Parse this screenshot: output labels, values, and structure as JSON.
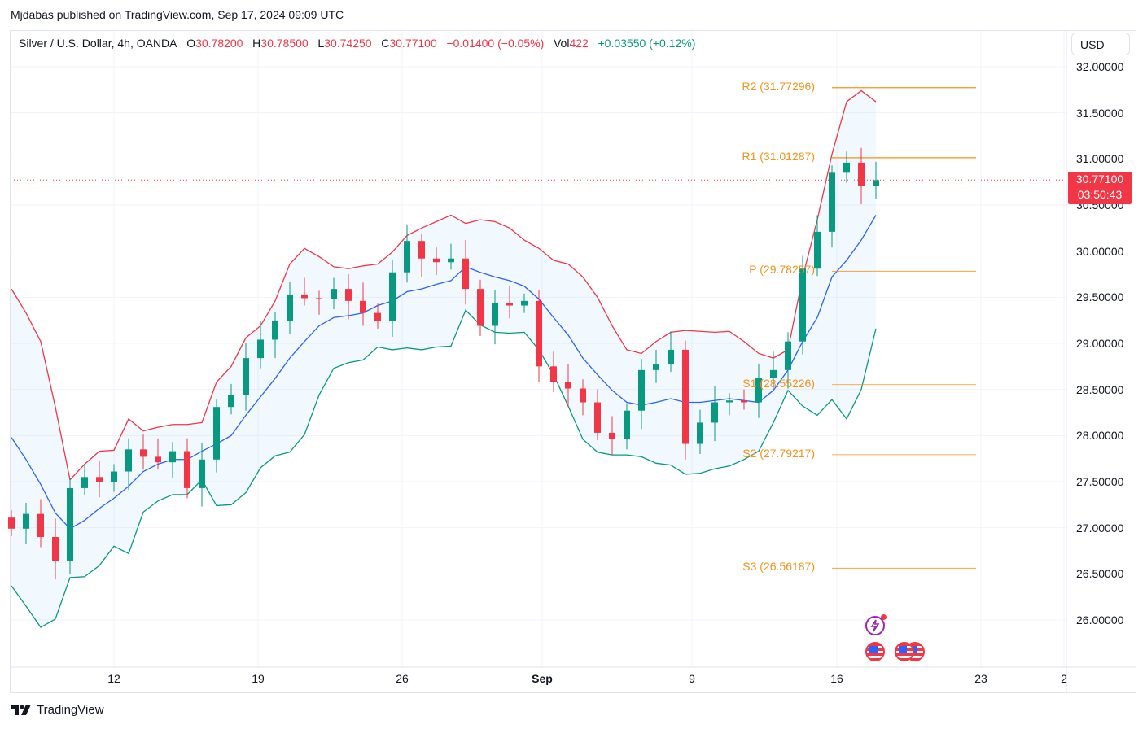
{
  "header": {
    "published": "Mjdabas published on TradingView.com, Sep 17, 2024 09:09 UTC"
  },
  "legend": {
    "symbol": "Silver / U.S. Dollar, 4h, OANDA",
    "open_label": "O",
    "open": "30.78200",
    "high_label": "H",
    "high": "30.78500",
    "low_label": "L",
    "low": "30.74250",
    "close_label": "C",
    "close": "30.77100",
    "change": "−0.01400 (−0.05%)",
    "vol_label": "Vol",
    "vol": "422",
    "indicator_change": "+0.03550 (+0.12%)"
  },
  "price_axis": {
    "currency": "USD",
    "last_price": "30.77100",
    "countdown": "03:50:43"
  },
  "footer": {
    "brand": "TradingView"
  },
  "colors": {
    "up": "#089981",
    "down": "#f23645",
    "bb_upper": "#f23645",
    "bb_basis": "#2962ff",
    "bb_lower": "#089981",
    "pivot": "#f7931a"
  },
  "chart_data": {
    "type": "candlestick",
    "title": "Silver / U.S. Dollar, 4h, OANDA",
    "ylim": [
      25.55,
      32.4
    ],
    "yticks": [
      "32.00000",
      "31.50000",
      "31.00000",
      "30.50000",
      "30.00000",
      "29.50000",
      "29.00000",
      "28.50000",
      "28.00000",
      "27.50000",
      "27.00000",
      "26.50000",
      "26.00000"
    ],
    "xticks": [
      "12",
      "19",
      "26",
      "Sep",
      "9",
      "16",
      "23",
      "2"
    ],
    "last_price": 30.771,
    "closes": [
      26.99,
      27.15,
      26.9,
      26.64,
      27.43,
      27.55,
      27.5,
      27.61,
      27.85,
      27.77,
      27.71,
      27.83,
      27.43,
      27.74,
      28.31,
      28.44,
      28.84,
      29.04,
      29.24,
      29.53,
      29.49,
      29.48,
      29.59,
      29.46,
      29.33,
      29.24,
      29.77,
      30.11,
      29.92,
      29.88,
      29.92,
      29.59,
      29.19,
      29.44,
      29.41,
      29.46,
      28.75,
      28.58,
      28.51,
      28.36,
      28.03,
      27.96,
      28.27,
      28.71,
      28.77,
      28.93,
      27.91,
      28.14,
      28.36,
      28.38,
      28.36,
      28.62,
      28.71,
      29.02,
      29.81,
      30.21,
      30.85,
      30.96,
      30.71,
      30.77
    ],
    "bb_upper": [
      29.59,
      29.33,
      29.02,
      28.31,
      27.52,
      27.69,
      27.83,
      27.84,
      28.18,
      28.05,
      28.09,
      28.12,
      28.12,
      28.14,
      28.58,
      28.75,
      29.06,
      29.19,
      29.46,
      29.86,
      30.03,
      29.94,
      29.83,
      29.81,
      29.84,
      29.86,
      29.99,
      30.17,
      30.25,
      30.32,
      30.39,
      30.3,
      30.34,
      30.32,
      30.25,
      30.12,
      30.03,
      29.9,
      29.86,
      29.72,
      29.5,
      29.19,
      28.93,
      28.89,
      29.02,
      29.12,
      29.14,
      29.13,
      29.12,
      29.13,
      29.02,
      28.89,
      28.84,
      28.93,
      29.72,
      30.34,
      31.05,
      31.62,
      31.74,
      31.62
    ],
    "bb_basis": [
      27.98,
      27.74,
      27.47,
      27.16,
      26.99,
      27.08,
      27.21,
      27.32,
      27.45,
      27.61,
      27.69,
      27.74,
      27.74,
      27.83,
      27.91,
      28.0,
      28.22,
      28.42,
      28.62,
      28.84,
      29.02,
      29.19,
      29.28,
      29.3,
      29.33,
      29.41,
      29.46,
      29.56,
      29.59,
      29.64,
      29.68,
      29.83,
      29.77,
      29.72,
      29.68,
      29.62,
      29.48,
      29.28,
      29.09,
      28.84,
      28.66,
      28.49,
      28.36,
      28.33,
      28.36,
      28.4,
      28.36,
      28.36,
      28.38,
      28.4,
      28.38,
      28.36,
      28.49,
      28.71,
      29.02,
      29.28,
      29.72,
      29.9,
      30.12,
      30.39
    ],
    "pivots": [
      {
        "name": "R2",
        "value": 31.77296,
        "label": "R2 (31.77296)"
      },
      {
        "name": "R1",
        "value": 31.01287,
        "label": "R1 (31.01287)"
      },
      {
        "name": "P",
        "value": 29.78257,
        "label": "P (29.78257)"
      },
      {
        "name": "S1",
        "value": 28.55226,
        "label": "S1 (28.55226)"
      },
      {
        "name": "S2",
        "value": 27.79217,
        "label": "S2 (27.79217)"
      },
      {
        "name": "S3",
        "value": 26.56187,
        "label": "S3 (26.56187)"
      }
    ]
  }
}
